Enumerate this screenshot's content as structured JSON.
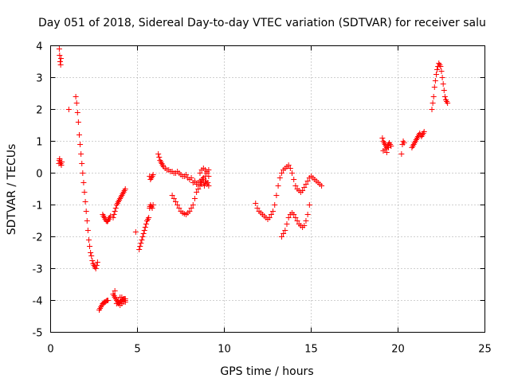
{
  "chart_data": {
    "type": "scatter",
    "title": "Day 051 of 2018, Sidereal Day-to-day VTEC variation (SDTVAR) for receiver salu",
    "xlabel": "GPS time / hours",
    "ylabel": "SDTVAR / TECUs",
    "xlim": [
      0,
      25
    ],
    "ylim": [
      -5,
      4
    ],
    "xticks": [
      0,
      5,
      10,
      15,
      20,
      25
    ],
    "yticks": [
      -5,
      -4,
      -3,
      -2,
      -1,
      0,
      1,
      2,
      3,
      4
    ],
    "grid": true,
    "marker": "+",
    "color": "#ff0000",
    "series": [
      {
        "name": "SDTVAR",
        "x": [
          0.48,
          0.5,
          0.52,
          0.55,
          0.58,
          0.62,
          0.65,
          0.5,
          0.52,
          0.55,
          0.58,
          0.6,
          1.05,
          1.45,
          1.5,
          1.55,
          1.6,
          1.65,
          1.7,
          1.75,
          1.8,
          1.85,
          1.9,
          1.95,
          2.0,
          2.05,
          2.1,
          2.15,
          2.2,
          2.25,
          2.3,
          2.35,
          2.4,
          2.45,
          2.5,
          2.55,
          2.6,
          2.65,
          2.7,
          2.8,
          2.85,
          2.9,
          2.95,
          3.0,
          3.05,
          3.1,
          3.15,
          3.2,
          3.25,
          3.3,
          3.0,
          3.05,
          3.1,
          3.15,
          3.2,
          3.25,
          3.3,
          3.35,
          3.4,
          3.45,
          3.6,
          3.65,
          3.7,
          3.75,
          3.8,
          3.85,
          3.9,
          3.95,
          4.0,
          4.05,
          4.1,
          4.15,
          4.2,
          4.25,
          4.3,
          3.6,
          3.65,
          3.7,
          3.75,
          3.8,
          3.85,
          3.9,
          3.95,
          4.0,
          4.05,
          4.1,
          4.15,
          4.2,
          4.25,
          4.3,
          3.7,
          3.8,
          3.9,
          4.0,
          4.1,
          4.2,
          4.3,
          4.0,
          4.1,
          4.2,
          4.3,
          4.9,
          5.1,
          5.15,
          5.2,
          5.25,
          5.3,
          5.35,
          5.4,
          5.45,
          5.5,
          5.55,
          5.6,
          5.65,
          5.7,
          5.72,
          5.75,
          5.8,
          5.85,
          5.9,
          5.7,
          5.75,
          5.8,
          5.85,
          5.9,
          6.2,
          6.25,
          6.3,
          6.35,
          6.4,
          6.45,
          6.5,
          6.6,
          6.7,
          6.8,
          6.9,
          7.0,
          7.1,
          7.2,
          7.3,
          7.4,
          7.5,
          7.6,
          7.7,
          7.8,
          7.9,
          8.0,
          8.1,
          8.2,
          8.3,
          8.4,
          8.5,
          8.6,
          8.7,
          8.8,
          8.9,
          9.0,
          9.1,
          7.0,
          7.1,
          7.2,
          7.3,
          7.4,
          7.5,
          7.6,
          7.7,
          7.8,
          7.9,
          8.0,
          8.1,
          8.2,
          8.3,
          8.4,
          8.5,
          8.6,
          8.7,
          8.8,
          8.9,
          9.0,
          9.1,
          8.6,
          8.7,
          8.8,
          8.9,
          9.0,
          9.1,
          8.65,
          8.75,
          8.85,
          8.95,
          9.05,
          11.8,
          11.9,
          12.0,
          12.1,
          12.2,
          12.3,
          12.4,
          12.5,
          12.6,
          12.7,
          12.8,
          12.9,
          13.0,
          13.1,
          13.2,
          13.3,
          13.4,
          13.5,
          13.6,
          13.7,
          13.8,
          13.9,
          14.0,
          14.1,
          14.2,
          14.3,
          14.4,
          14.5,
          14.6,
          14.7,
          14.8,
          14.9,
          15.0,
          15.1,
          15.2,
          15.3,
          15.4,
          15.5,
          15.6,
          13.3,
          13.4,
          13.5,
          13.6,
          13.7,
          13.8,
          13.9,
          14.0,
          14.1,
          14.2,
          14.3,
          14.4,
          14.5,
          14.6,
          14.7,
          14.8,
          14.9,
          19.1,
          19.15,
          19.2,
          19.25,
          19.3,
          19.35,
          19.4,
          19.45,
          19.5,
          19.55,
          19.6,
          19.15,
          19.25,
          19.35,
          19.45,
          20.2,
          20.25,
          20.3,
          20.35,
          20.8,
          20.85,
          20.9,
          20.95,
          21.0,
          21.05,
          21.1,
          21.15,
          21.2,
          21.25,
          21.3,
          21.35,
          21.4,
          21.45,
          21.5,
          21.95,
          22.0,
          22.05,
          22.1,
          22.15,
          22.2,
          22.25,
          22.3,
          22.35,
          22.4,
          22.45,
          22.5,
          22.55,
          22.6,
          22.65,
          22.7,
          22.75,
          22.8,
          22.85
        ],
        "y": [
          0.3,
          0.4,
          0.45,
          0.35,
          0.3,
          0.25,
          0.35,
          3.9,
          3.7,
          3.5,
          3.4,
          3.6,
          2.0,
          2.4,
          2.2,
          1.9,
          1.6,
          1.2,
          0.9,
          0.6,
          0.3,
          0.0,
          -0.3,
          -0.6,
          -0.9,
          -1.2,
          -1.5,
          -1.8,
          -2.1,
          -2.3,
          -2.5,
          -2.6,
          -2.75,
          -2.85,
          -2.9,
          -2.95,
          -3.0,
          -2.9,
          -2.8,
          -4.3,
          -4.25,
          -4.2,
          -4.15,
          -4.1,
          -4.08,
          -4.05,
          -4.05,
          -4.02,
          -4.0,
          -4.0,
          -1.3,
          -1.35,
          -1.4,
          -1.45,
          -1.5,
          -1.52,
          -1.5,
          -1.45,
          -1.4,
          -1.35,
          -1.4,
          -1.3,
          -1.2,
          -1.1,
          -1.0,
          -0.95,
          -0.9,
          -0.85,
          -0.8,
          -0.75,
          -0.7,
          -0.65,
          -0.6,
          -0.55,
          -0.5,
          -3.8,
          -3.85,
          -3.9,
          -3.95,
          -4.0,
          -4.05,
          -4.1,
          -4.08,
          -4.05,
          -4.02,
          -4.0,
          -3.98,
          -3.95,
          -3.95,
          -3.95,
          -3.7,
          -4.1,
          -4.0,
          -4.15,
          -3.9,
          -4.05,
          -4.0,
          -3.9,
          -4.1,
          -3.95,
          -4.05,
          -1.85,
          -2.4,
          -2.3,
          -2.2,
          -2.1,
          -2.0,
          -1.9,
          -1.8,
          -1.7,
          -1.6,
          -1.5,
          -1.45,
          -1.4,
          -1.1,
          -1.05,
          -1.0,
          -1.05,
          -1.1,
          -1.0,
          -0.1,
          -0.2,
          -0.15,
          -0.1,
          -0.05,
          0.6,
          0.5,
          0.4,
          0.35,
          0.3,
          0.25,
          0.2,
          0.15,
          0.1,
          0.1,
          0.05,
          0.05,
          0.0,
          0.0,
          0.05,
          0.0,
          -0.05,
          -0.1,
          -0.1,
          -0.05,
          -0.15,
          -0.2,
          -0.15,
          -0.3,
          -0.25,
          -0.35,
          -0.3,
          -0.25,
          -0.2,
          -0.15,
          -0.1,
          0.05,
          0.1,
          -0.7,
          -0.8,
          -0.9,
          -1.0,
          -1.1,
          -1.2,
          -1.25,
          -1.28,
          -1.3,
          -1.25,
          -1.2,
          -1.1,
          -1.0,
          -0.8,
          -0.6,
          -0.5,
          -0.4,
          -0.35,
          -0.3,
          -0.3,
          -0.35,
          -0.4,
          0.0,
          0.1,
          0.15,
          0.1,
          0.0,
          -0.1,
          -0.3,
          -0.2,
          -0.4,
          -0.25,
          -0.3,
          -0.95,
          -1.1,
          -1.2,
          -1.25,
          -1.3,
          -1.35,
          -1.4,
          -1.45,
          -1.4,
          -1.3,
          -1.2,
          -1.0,
          -0.7,
          -0.4,
          -0.15,
          0.0,
          0.1,
          0.15,
          0.2,
          0.25,
          0.15,
          0.0,
          -0.2,
          -0.4,
          -0.5,
          -0.55,
          -0.6,
          -0.55,
          -0.45,
          -0.35,
          -0.25,
          -0.15,
          -0.1,
          -0.15,
          -0.2,
          -0.25,
          -0.3,
          -0.35,
          -0.4,
          -2.0,
          -1.9,
          -1.8,
          -1.6,
          -1.4,
          -1.3,
          -1.25,
          -1.3,
          -1.4,
          -1.5,
          -1.6,
          -1.65,
          -1.7,
          -1.65,
          -1.5,
          -1.3,
          -1.0,
          1.1,
          1.0,
          0.95,
          0.9,
          0.85,
          0.8,
          0.85,
          0.9,
          0.95,
          0.9,
          0.85,
          0.7,
          0.75,
          0.65,
          0.8,
          0.6,
          0.9,
          1.0,
          0.95,
          0.8,
          0.85,
          0.9,
          0.95,
          1.0,
          1.05,
          1.1,
          1.15,
          1.2,
          1.25,
          1.2,
          1.15,
          1.2,
          1.25,
          1.3,
          2.0,
          2.2,
          2.4,
          2.7,
          2.9,
          3.1,
          3.25,
          3.35,
          3.45,
          3.4,
          3.35,
          3.2,
          3.0,
          2.8,
          2.6,
          2.4,
          2.3,
          2.25,
          2.2
        ]
      }
    ]
  }
}
